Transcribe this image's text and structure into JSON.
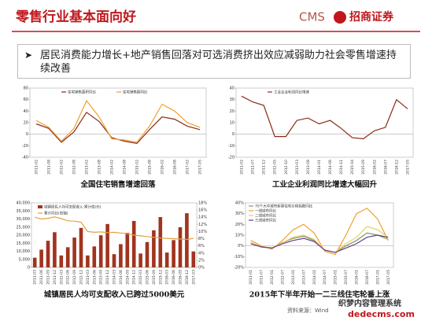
{
  "header": {
    "title": "零售行业基本面向好",
    "logo_cms": "CMS",
    "logo_name": "招商证券"
  },
  "summary": "居民消费能力增长+地产销售回落对可选消费挤出效应减弱助力社会零售增速持续改善",
  "chart_data": [
    {
      "type": "line",
      "title": "全国住宅销售增速回落",
      "legend": "top",
      "categories": [
        "2011-02",
        "2011-08",
        "2012-02",
        "2012-08",
        "2013-02",
        "2013-08",
        "2014-02",
        "2014-08",
        "2015-02",
        "2015-08",
        "2016-02",
        "2016-08",
        "2017-02",
        "2017-05"
      ],
      "series": [
        {
          "name": "住宅销售面积同比",
          "color": "#8b2a1a",
          "values": [
            18,
            10,
            -14,
            4,
            38,
            22,
            -6,
            -12,
            -16,
            8,
            30,
            26,
            14,
            8
          ]
        },
        {
          "name": "住宅销售额同比",
          "color": "#f0a030",
          "values": [
            24,
            12,
            -12,
            10,
            58,
            30,
            -8,
            -10,
            -14,
            14,
            52,
            40,
            20,
            12
          ]
        }
      ],
      "ylim": [
        -40,
        80
      ],
      "yticks": [
        -40,
        -20,
        0,
        20,
        40,
        60,
        80
      ]
    },
    {
      "type": "line",
      "title": "工业企业利润同比增速大幅回升",
      "legend": "top",
      "categories": [
        "2011-02",
        "2011-07",
        "2011-12",
        "2012-05",
        "2012-10",
        "2013-03",
        "2013-08",
        "2014-01",
        "2014-06",
        "2014-11",
        "2015-04",
        "2015-09",
        "2016-02",
        "2016-07",
        "2016-12",
        "2017-05"
      ],
      "series": [
        {
          "name": "工业企业利润同比增速",
          "color": "#8b2a1a",
          "values": [
            33,
            28,
            25,
            -2,
            -2,
            12,
            14,
            9,
            12,
            5,
            -3,
            -4,
            3,
            6,
            30,
            22
          ]
        }
      ],
      "ylim": [
        -20,
        40
      ],
      "yticks": [
        -20,
        -10,
        0,
        10,
        20,
        30,
        40
      ]
    },
    {
      "type": "bar",
      "title": "城镇居民人均可支配收入已跨过5000美元",
      "legend": "top-left",
      "categories": [
        "2011-03",
        "2011-06",
        "2011-09",
        "2011-12",
        "2012-03",
        "2012-06",
        "2012-09",
        "2012-12",
        "2013-03",
        "2013-06",
        "2013-09",
        "2013-12",
        "2014-03",
        "2014-06",
        "2014-09",
        "2014-12",
        "2015-03",
        "2015-06",
        "2015-09",
        "2015-12",
        "2016-03",
        "2016-06",
        "2016-09",
        "2016-12",
        "2017-03"
      ],
      "series": [
        {
          "name": "城镇居民人均可支配收入:累计值(元)",
          "color": "#a0341e",
          "values": [
            6000,
            11000,
            16500,
            21800,
            7400,
            12500,
            18500,
            24500,
            7400,
            13000,
            19900,
            26900,
            8200,
            14400,
            21400,
            28800,
            8600,
            15700,
            23000,
            31200,
            9200,
            16900,
            24900,
            33600,
            9900
          ]
        },
        {
          "name": "累计同比(右轴)",
          "color": "#e8a040",
          "axis": "y2",
          "values": [
            14,
            13.5,
            13.7,
            14.1,
            13.6,
            13,
            12.9,
            12.6,
            10,
            9.8,
            9.9,
            9.7,
            9.8,
            9.6,
            9.4,
            9,
            8.8,
            8.6,
            8.4,
            8.2,
            8.1,
            8,
            7.9,
            7.8,
            8.1
          ]
        }
      ],
      "ylim": [
        0,
        40000
      ],
      "yticks": [
        0,
        {
          "value": 5000,
          "label": "5,000"
        },
        {
          "value": 10000,
          "label": "10,000"
        },
        {
          "value": 15000,
          "label": "15,000"
        },
        {
          "value": 20000,
          "label": "20,000"
        },
        {
          "value": 25000,
          "label": "25,000"
        },
        {
          "value": 30000,
          "label": "30,000"
        },
        {
          "value": 35000,
          "label": "35,000"
        },
        {
          "value": 40000,
          "label": "40,000"
        }
      ],
      "y2lim": [
        0,
        18
      ],
      "y2ticks": [
        {
          "value": 0,
          "label": "0%"
        },
        {
          "value": 2,
          "label": "2%"
        },
        {
          "value": 4,
          "label": "4%"
        },
        {
          "value": 6,
          "label": "6%"
        },
        {
          "value": 8,
          "label": "8%"
        },
        {
          "value": 10,
          "label": "10%"
        },
        {
          "value": 12,
          "label": "12%"
        },
        {
          "value": 14,
          "label": "14%"
        },
        {
          "value": 16,
          "label": "16%"
        },
        {
          "value": 18,
          "label": "18%"
        }
      ]
    },
    {
      "type": "line",
      "title": "2015年下半年开始一二三线住宅轮番上涨",
      "legend": "top-left-stack",
      "categories": [
        "2011-01",
        "2011-07",
        "2012-01",
        "2012-07",
        "2013-01",
        "2013-07",
        "2014-01",
        "2014-07",
        "2015-01",
        "2015-07",
        "2016-01",
        "2016-07",
        "2017-01",
        "2017-05"
      ],
      "series": [
        {
          "name": "70个大中城市新建住宅价格指数同比",
          "color": "#7a9a6a",
          "values": [
            3,
            -1,
            -2,
            3,
            7,
            9,
            5,
            -4,
            -6,
            0,
            5,
            12,
            10,
            6
          ]
        },
        {
          "name": "一线城市同比",
          "color": "#f0a030",
          "values": [
            5,
            0,
            -3,
            5,
            15,
            20,
            12,
            -5,
            -8,
            10,
            30,
            35,
            25,
            5
          ]
        },
        {
          "name": "二线城市同比",
          "color": "#e8d060",
          "values": [
            3,
            -1,
            -2,
            3,
            8,
            10,
            6,
            -4,
            -6,
            2,
            8,
            18,
            15,
            8
          ]
        },
        {
          "name": "三线城市同比",
          "color": "#6a3a8a",
          "values": [
            2,
            -1,
            -2,
            2,
            5,
            7,
            4,
            -4,
            -6,
            -2,
            2,
            8,
            10,
            8
          ]
        }
      ],
      "ylim": [
        -20,
        40
      ],
      "yticks": [
        {
          "value": -20,
          "label": "-20%"
        },
        {
          "value": -10,
          "label": "-10%"
        },
        {
          "value": 0,
          "label": "0%"
        },
        {
          "value": 10,
          "label": "10%"
        },
        {
          "value": 20,
          "label": "20%"
        },
        {
          "value": 30,
          "label": "30%"
        },
        {
          "value": 40,
          "label": "40%"
        }
      ]
    }
  ],
  "source": "资料来源：Wind",
  "watermark": [
    "织梦内容管理系统",
    "dedecms.com"
  ]
}
